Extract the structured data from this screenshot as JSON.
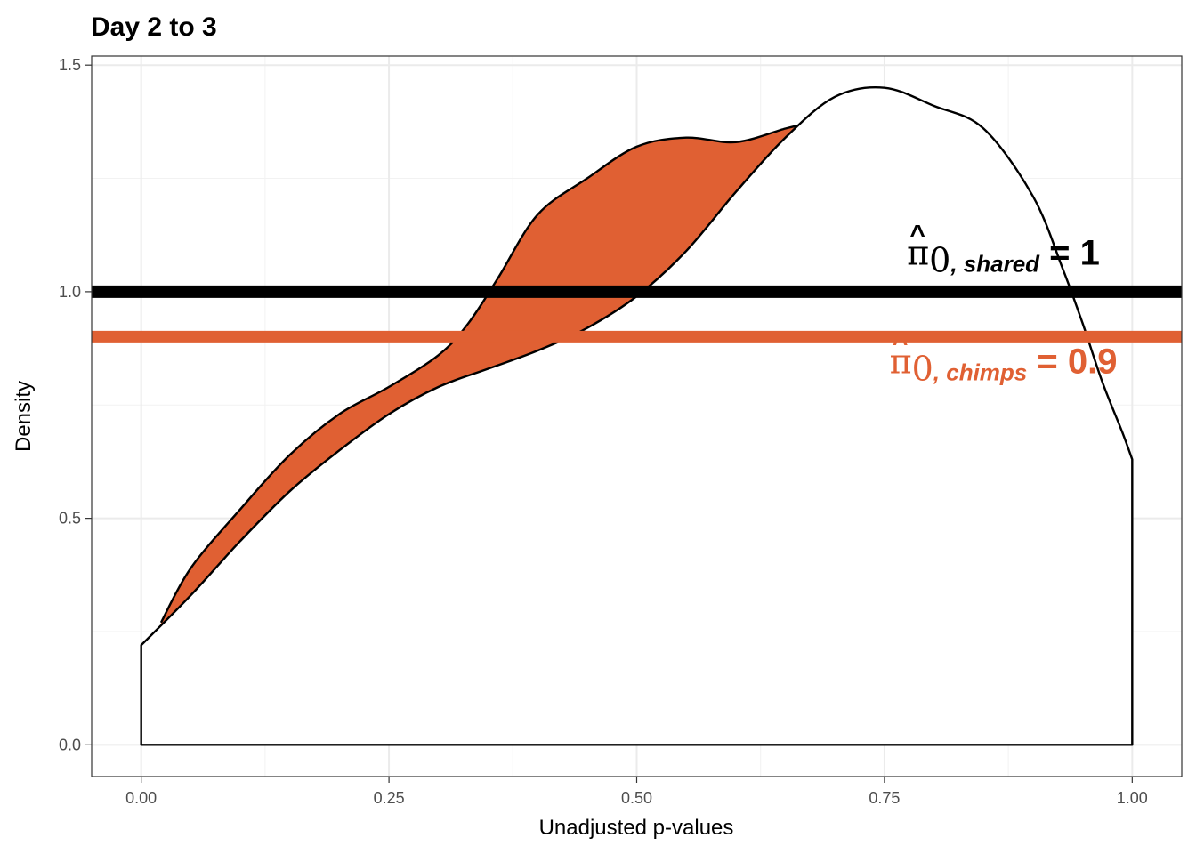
{
  "chart_data": {
    "type": "area",
    "title": "Day 2 to 3",
    "xlabel": "Unadjusted p-values",
    "ylabel": "Density",
    "xlim": [
      -0.05,
      1.05
    ],
    "ylim": [
      -0.07,
      1.52
    ],
    "x_ticks": [
      "0.00",
      "0.25",
      "0.50",
      "0.75",
      "1.00"
    ],
    "x_tick_values": [
      0,
      0.25,
      0.5,
      0.75,
      1.0
    ],
    "y_ticks": [
      "0.0",
      "0.5",
      "1.0",
      "1.5"
    ],
    "y_tick_values": [
      0,
      0.5,
      1.0,
      1.5
    ],
    "grid": true,
    "colors": {
      "chimps": "#E06033",
      "shared": "#000000",
      "fill_white": "#ffffff"
    },
    "shared_density": {
      "x": [
        0.0,
        0.05,
        0.1,
        0.15,
        0.2,
        0.25,
        0.3,
        0.35,
        0.4,
        0.45,
        0.5,
        0.55,
        0.6,
        0.65,
        0.7,
        0.75,
        0.8,
        0.85,
        0.9,
        0.93,
        0.95,
        0.97,
        0.99,
        1.0
      ],
      "y": [
        0.22,
        0.33,
        0.45,
        0.56,
        0.65,
        0.73,
        0.79,
        0.83,
        0.87,
        0.92,
        0.99,
        1.09,
        1.22,
        1.34,
        1.43,
        1.45,
        1.41,
        1.36,
        1.21,
        1.05,
        0.93,
        0.8,
        0.69,
        0.63
      ]
    },
    "chimps_density": {
      "x": [
        0.02,
        0.05,
        0.1,
        0.15,
        0.2,
        0.25,
        0.3,
        0.33,
        0.36,
        0.4,
        0.45,
        0.5,
        0.55,
        0.6,
        0.65,
        0.67
      ],
      "y": [
        0.27,
        0.39,
        0.52,
        0.64,
        0.73,
        0.79,
        0.86,
        0.93,
        1.03,
        1.17,
        1.25,
        1.32,
        1.34,
        1.33,
        1.36,
        1.37
      ]
    },
    "hlines": [
      {
        "name": "shared",
        "y": 1.0
      },
      {
        "name": "chimps",
        "y": 0.9
      }
    ],
    "annotations": [
      {
        "symbol": "π",
        "hat": "^",
        "sub_prefix": "0",
        "sub": ", shared",
        "eq": " = 1",
        "x": 0.87,
        "y": 1.06,
        "color": "#000000"
      },
      {
        "symbol": "π",
        "hat": "^",
        "sub_prefix": "0",
        "sub": ", chimps",
        "eq": " = 0.9",
        "x": 0.87,
        "y": 0.82,
        "color": "#E06033"
      }
    ]
  }
}
